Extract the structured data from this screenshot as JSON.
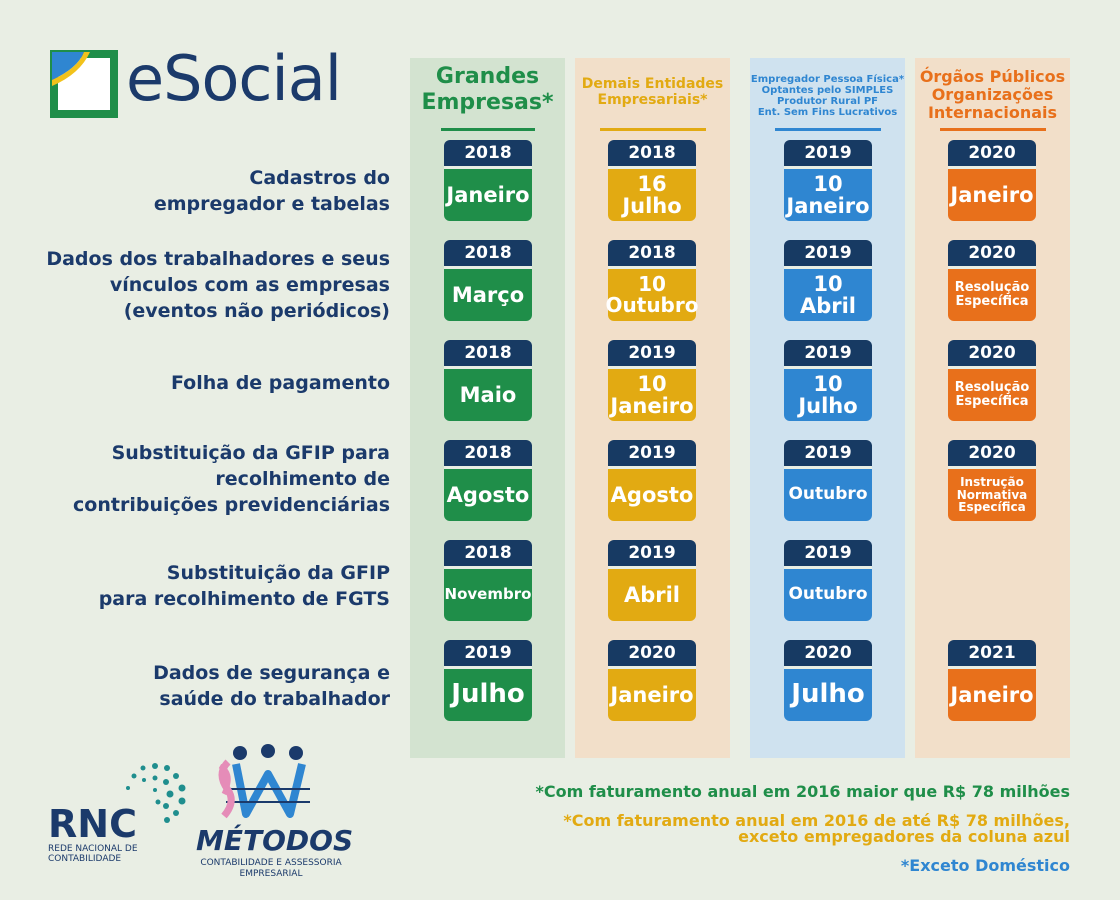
{
  "logo": {
    "text": "eSocial"
  },
  "columns": [
    {
      "key": "grandes",
      "title": "Grandes\nEmpresas*",
      "color": "#1f8e49"
    },
    {
      "key": "demais",
      "title": "Demais Entidades\nEmpresariais*",
      "color": "#e2aa12"
    },
    {
      "key": "pf",
      "title": "Empregador Pessoa Física*\nOptantes pelo SIMPLES\nProdutor Rural PF\nEnt. Sem Fins Lucrativos",
      "color": "#2f86d1"
    },
    {
      "key": "orgaos",
      "title": "Órgãos Públicos\nOrganizações\nInternacionais",
      "color": "#e8701b"
    }
  ],
  "rows": [
    {
      "label": "Cadastros do\nempregador e tabelas",
      "cells": [
        {
          "year": "2018",
          "value": "Janeiro"
        },
        {
          "year": "2018",
          "value": "16\nJulho"
        },
        {
          "year": "2019",
          "value": "10\nJaneiro"
        },
        {
          "year": "2020",
          "value": "Janeiro"
        }
      ]
    },
    {
      "label": "Dados dos trabalhadores e seus\nvínculos com as empresas\n(eventos não periódicos)",
      "cells": [
        {
          "year": "2018",
          "value": "Março"
        },
        {
          "year": "2018",
          "value": "10\nOutubro"
        },
        {
          "year": "2019",
          "value": "10\nAbril"
        },
        {
          "year": "2020",
          "value": "Resolução\nEspecífica"
        }
      ]
    },
    {
      "label": "Folha de pagamento",
      "cells": [
        {
          "year": "2018",
          "value": "Maio"
        },
        {
          "year": "2019",
          "value": "10\nJaneiro"
        },
        {
          "year": "2019",
          "value": "10\nJulho"
        },
        {
          "year": "2020",
          "value": "Resolução\nEspecífica"
        }
      ]
    },
    {
      "label": "Substituição da GFIP para\nrecolhimento de\ncontribuições previdenciárias",
      "cells": [
        {
          "year": "2018",
          "value": "Agosto"
        },
        {
          "year": "2019",
          "value": "Agosto"
        },
        {
          "year": "2019",
          "value": "Outubro"
        },
        {
          "year": "2020",
          "value": "Instrução\nNormativa\nEspecífica"
        }
      ]
    },
    {
      "label": "Substituição da GFIP\npara recolhimento de FGTS",
      "cells": [
        {
          "year": "2018",
          "value": "Novembro"
        },
        {
          "year": "2019",
          "value": "Abril"
        },
        {
          "year": "2019",
          "value": "Outubro"
        },
        null
      ]
    },
    {
      "label": "Dados de segurança e\nsaúde do trabalhador",
      "cells": [
        {
          "year": "2019",
          "value": "Julho"
        },
        {
          "year": "2020",
          "value": "Janeiro"
        },
        {
          "year": "2020",
          "value": "Julho"
        },
        {
          "year": "2021",
          "value": "Janeiro"
        }
      ]
    }
  ],
  "footnotes": [
    {
      "text": "*Com faturamento anual em 2016 maior que R$ 78 milhões",
      "color": "#1f8e49"
    },
    {
      "text": "*Com faturamento anual em 2016 de até R$ 78 milhões,\nexceto empregadores da coluna azul",
      "color": "#e2aa12"
    },
    {
      "text": "*Exceto Doméstico",
      "color": "#2f86d1"
    }
  ],
  "rnc": {
    "name": "RNC",
    "sub": "REDE NACIONAL DE\nCONTABILIDADE"
  },
  "metodos": {
    "name": "MÉTODOS",
    "sub": "CONTABILIDADE E ASSESSORIA\nEMPRESARIAL"
  }
}
